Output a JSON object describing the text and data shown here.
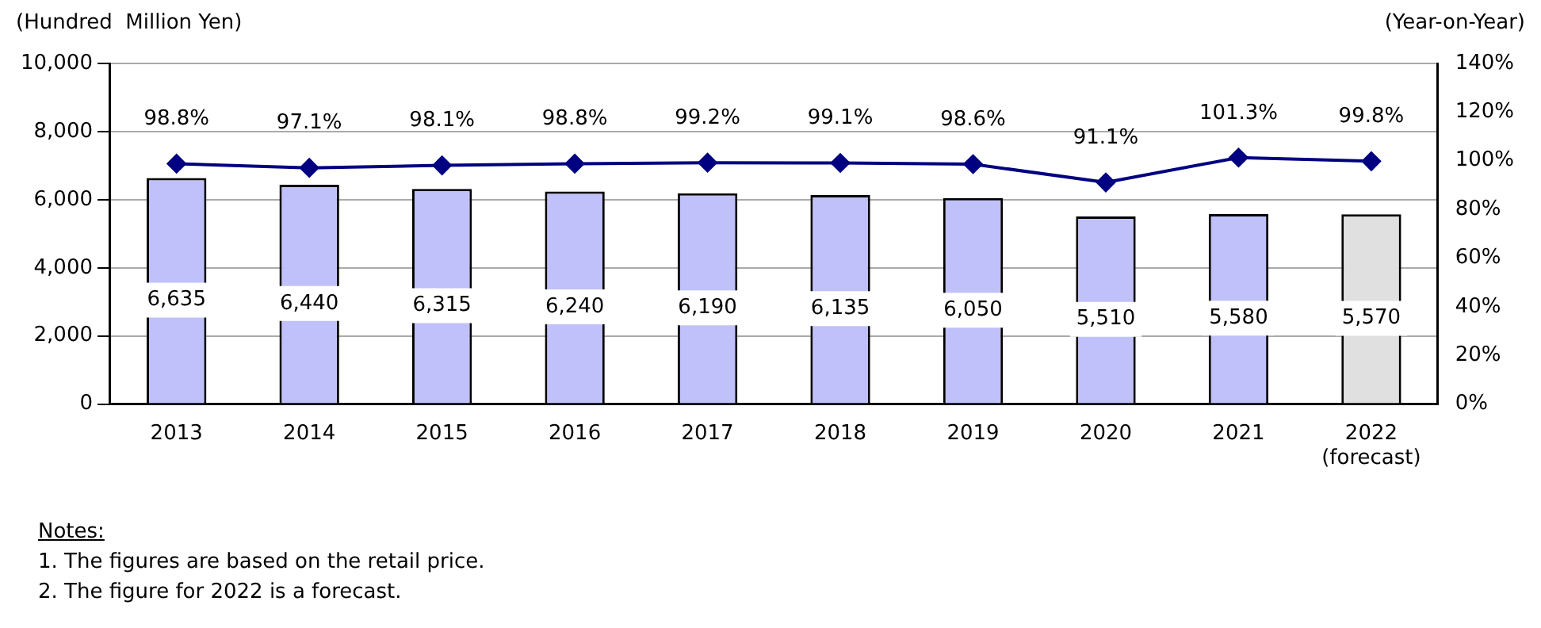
{
  "chart_data": {
    "type": "bar",
    "ylabel": "(Hundred  Million Yen)",
    "y2label": "(Year-on-Year)",
    "categories": [
      "2013",
      "2014",
      "2015",
      "2016",
      "2017",
      "2018",
      "2019",
      "2020",
      "2021",
      "2022 (forecast)"
    ],
    "series": [
      {
        "colors": [
          "#c0c0fa",
          "#c0c0fa",
          "#c0c0fa",
          "#c0c0fa",
          "#c0c0fa",
          "#c0c0fa",
          "#c0c0fa",
          "#c0c0fa",
          "#c0c0fa",
          "#e0e0e0"
        ],
        "values": [
          6635,
          6440,
          6315,
          6240,
          6190,
          6135,
          6050,
          5510,
          5580,
          5570
        ],
        "value_labels": [
          "6,635",
          "6,440",
          "6,315",
          "6,240",
          "6,190",
          "6,135",
          "6,050",
          "5,510",
          "5,580",
          "5,570"
        ]
      },
      {
        "type": "line",
        "axis": "y2",
        "color": "#000080",
        "marker": "diamond",
        "values": [
          98.8,
          97.1,
          98.1,
          98.8,
          99.2,
          99.1,
          98.6,
          91.1,
          101.3,
          99.8
        ],
        "value_labels": [
          "98.8%",
          "97.1%",
          "98.1%",
          "98.8%",
          "99.2%",
          "99.1%",
          "98.6%",
          "91.1%",
          "101.3%",
          "99.8%"
        ]
      }
    ],
    "ylim": [
      0,
      10000
    ],
    "yticks": [
      0,
      {
        "value": 2000,
        "label": "2,000"
      },
      {
        "value": 4000,
        "label": "4,000"
      },
      {
        "value": 6000,
        "label": "6,000"
      },
      {
        "value": 8000,
        "label": "8,000"
      },
      {
        "value": 10000,
        "label": "10,000"
      }
    ],
    "y2lim": [
      0,
      140
    ],
    "y2ticks": [
      {
        "value": 0,
        "label": "0%"
      },
      {
        "value": 20,
        "label": "20%"
      },
      {
        "value": 40,
        "label": "40%"
      },
      {
        "value": 60,
        "label": "60%"
      },
      {
        "value": 80,
        "label": "80%"
      },
      {
        "value": 100,
        "label": "100%"
      },
      {
        "value": 120,
        "label": "120%"
      },
      {
        "value": 140,
        "label": "140%"
      }
    ],
    "grid": "y",
    "legend": false,
    "annotations": [
      "Notes:",
      "1. The figures are based on the retail price.",
      "2. The figure for 2022 is a forecast."
    ]
  }
}
